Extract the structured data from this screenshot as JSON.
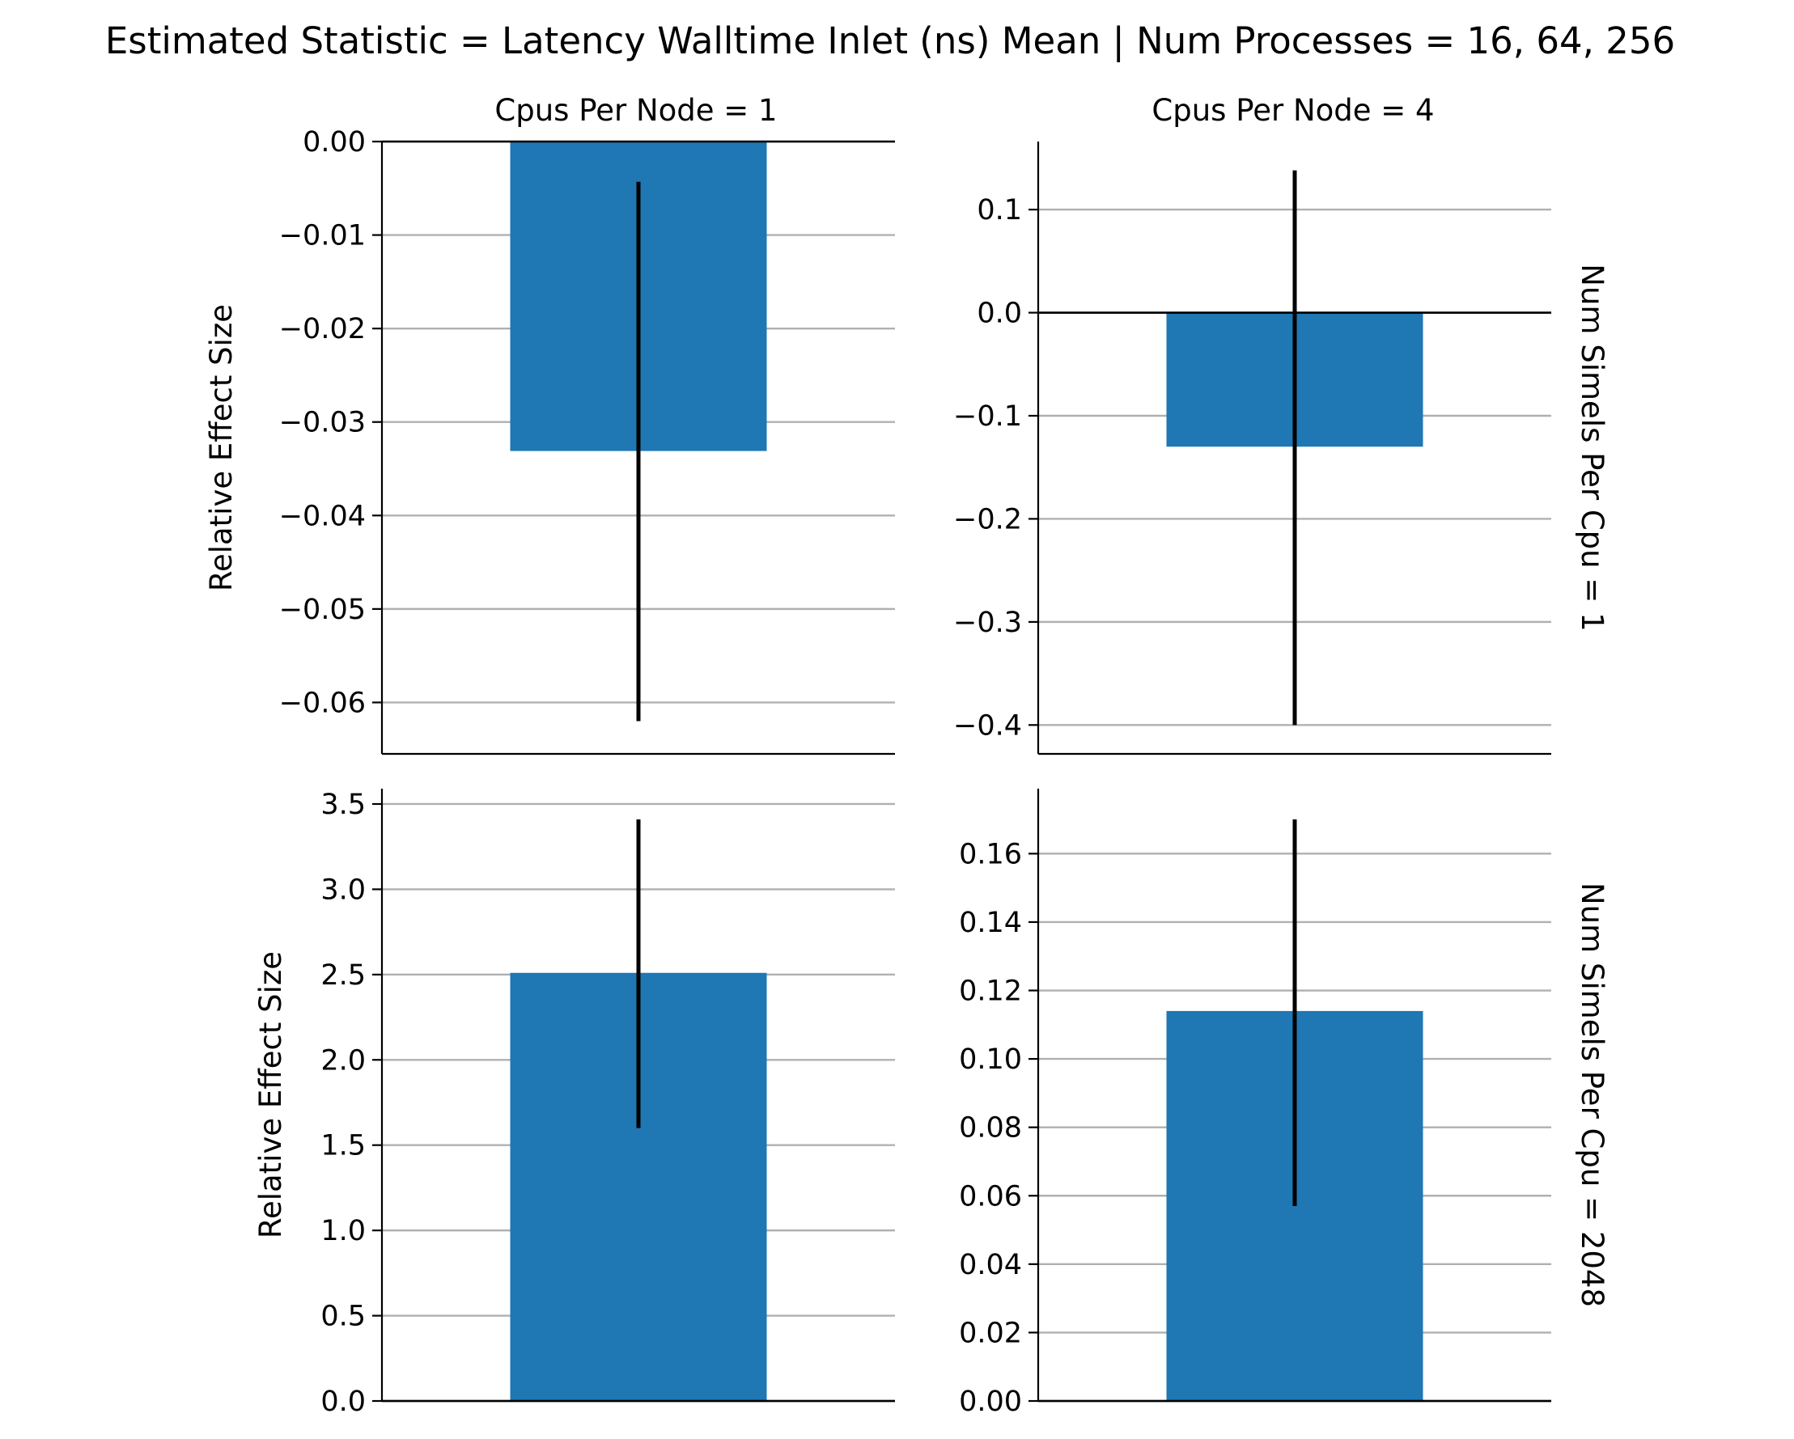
{
  "chart_data": {
    "type": "bar",
    "title": "Estimated Statistic = Latency Walltime Inlet (ns) Mean | Num Processes = 16, 64, 256",
    "ylabel": "Relative Effect Size",
    "col_titles": [
      "Cpus Per Node = 1",
      "Cpus Per Node = 4"
    ],
    "row_titles": [
      "Num Simels Per Cpu = 1",
      "Num Simels Per Cpu = 2048"
    ],
    "grid": "y",
    "bar_color": "#1f77b4",
    "panels": [
      {
        "row": 0,
        "col": 0,
        "value": -0.0331,
        "ci": [
          -0.062,
          -0.0043
        ],
        "ylim": [
          -0.0655,
          0.0
        ],
        "yticks": [
          0.0,
          -0.01,
          -0.02,
          -0.03,
          -0.04,
          -0.05,
          -0.06
        ],
        "ytick_labels": [
          "0.00",
          "−0.01",
          "−0.02",
          "−0.03",
          "−0.04",
          "−0.05",
          "−0.06"
        ]
      },
      {
        "row": 0,
        "col": 1,
        "value": -0.13,
        "ci": [
          -0.4,
          0.138
        ],
        "ylim": [
          -0.428,
          0.166
        ],
        "yticks": [
          0.1,
          0.0,
          -0.1,
          -0.2,
          -0.3,
          -0.4
        ],
        "ytick_labels": [
          "0.1",
          "0.0",
          "−0.1",
          "−0.2",
          "−0.3",
          "−0.4"
        ]
      },
      {
        "row": 1,
        "col": 0,
        "value": 2.51,
        "ci": [
          1.6,
          3.41
        ],
        "ylim": [
          0.0,
          3.59
        ],
        "yticks": [
          0.0,
          0.5,
          1.0,
          1.5,
          2.0,
          2.5,
          3.0,
          3.5
        ],
        "ytick_labels": [
          "0.0",
          "0.5",
          "1.0",
          "1.5",
          "2.0",
          "2.5",
          "3.0",
          "3.5"
        ]
      },
      {
        "row": 1,
        "col": 1,
        "value": 0.114,
        "ci": [
          0.057,
          0.17
        ],
        "ylim": [
          0.0,
          0.179
        ],
        "yticks": [
          0.0,
          0.02,
          0.04,
          0.06,
          0.08,
          0.1,
          0.12,
          0.14,
          0.16
        ],
        "ytick_labels": [
          "0.00",
          "0.02",
          "0.04",
          "0.06",
          "0.08",
          "0.10",
          "0.12",
          "0.14",
          "0.16"
        ]
      }
    ]
  }
}
